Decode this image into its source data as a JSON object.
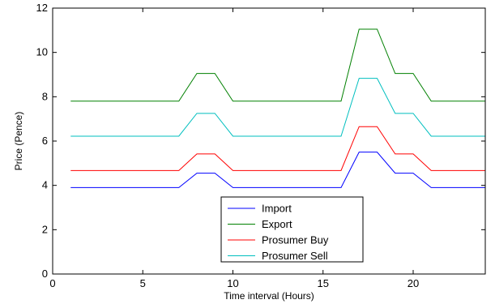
{
  "chart_data": {
    "type": "line",
    "title": "",
    "xlabel": "Time interval (Hours)",
    "ylabel": "Price (Pence)",
    "xlim": [
      0,
      24
    ],
    "ylim": [
      0,
      12
    ],
    "xticks": [
      0,
      5,
      10,
      15,
      20
    ],
    "yticks": [
      0,
      2,
      4,
      6,
      8,
      10,
      12
    ],
    "grid": false,
    "legend_position": "bottom-center",
    "x": [
      1,
      2,
      3,
      4,
      5,
      6,
      7,
      8,
      9,
      10,
      11,
      12,
      13,
      14,
      15,
      16,
      17,
      18,
      19,
      20,
      21,
      22,
      23,
      24
    ],
    "series": [
      {
        "name": "Import",
        "color": "#0000ff",
        "values": [
          3.9,
          3.9,
          3.9,
          3.9,
          3.9,
          3.9,
          3.9,
          4.55,
          4.55,
          3.9,
          3.9,
          3.9,
          3.9,
          3.9,
          3.9,
          3.9,
          5.5,
          5.5,
          4.55,
          4.55,
          3.9,
          3.9,
          3.9,
          3.9
        ]
      },
      {
        "name": "Export",
        "color": "#008000",
        "values": [
          7.8,
          7.8,
          7.8,
          7.8,
          7.8,
          7.8,
          7.8,
          9.05,
          9.05,
          7.8,
          7.8,
          7.8,
          7.8,
          7.8,
          7.8,
          7.8,
          11.05,
          11.05,
          9.05,
          9.05,
          7.8,
          7.8,
          7.8,
          7.8
        ]
      },
      {
        "name": "Prosumer Buy",
        "color": "#ff0000",
        "values": [
          4.67,
          4.67,
          4.67,
          4.67,
          4.67,
          4.67,
          4.67,
          5.42,
          5.42,
          4.67,
          4.67,
          4.67,
          4.67,
          4.67,
          4.67,
          4.67,
          6.65,
          6.65,
          5.42,
          5.42,
          4.67,
          4.67,
          4.67,
          4.67
        ]
      },
      {
        "name": "Prosumer Sell",
        "color": "#00bfbf",
        "values": [
          6.22,
          6.22,
          6.22,
          6.22,
          6.22,
          6.22,
          6.22,
          7.25,
          7.25,
          6.22,
          6.22,
          6.22,
          6.22,
          6.22,
          6.22,
          6.22,
          8.83,
          8.83,
          7.25,
          7.25,
          6.22,
          6.22,
          6.22,
          6.22
        ]
      }
    ]
  }
}
